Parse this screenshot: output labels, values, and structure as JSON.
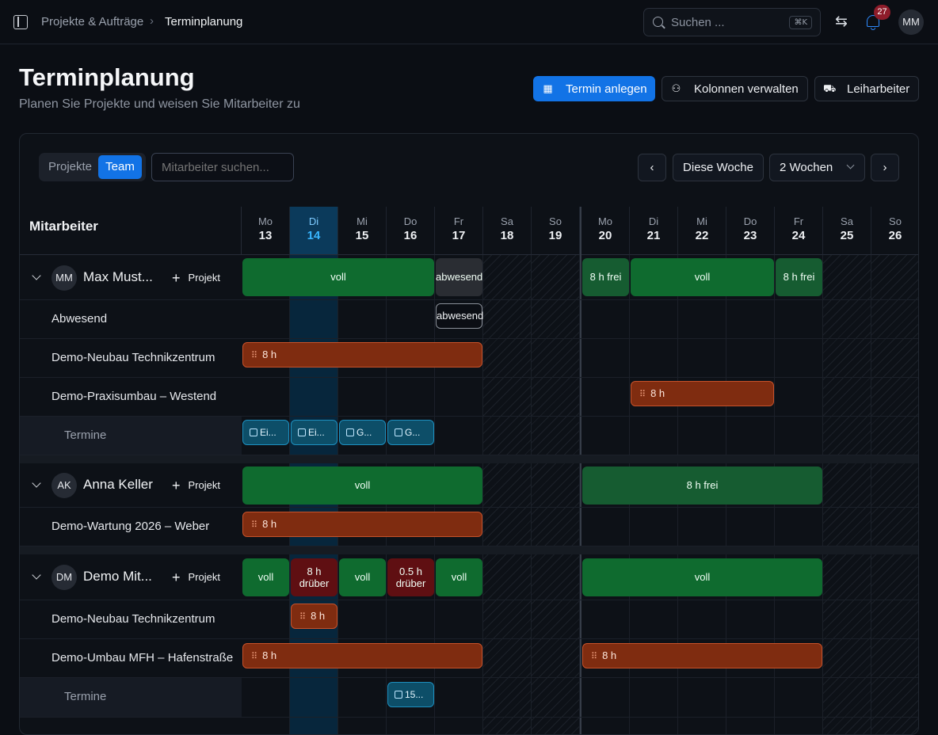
{
  "breadcrumb": {
    "parent": "Projekte & Aufträge",
    "current": "Terminplanung"
  },
  "search": {
    "placeholder": "Suchen ...",
    "shortcut": "⌘K"
  },
  "notifications": {
    "count": "27"
  },
  "user": {
    "initials": "MM"
  },
  "page": {
    "title": "Terminplanung",
    "subtitle": "Planen Sie Projekte und weisen Sie Mitarbeiter zu"
  },
  "actions": {
    "create": "Termin anlegen",
    "columns": "Kolonnen verwalten",
    "temp": "Leiharbeiter"
  },
  "toolbar": {
    "view_projects": "Projekte",
    "view_team": "Team",
    "member_search_placeholder": "Mitarbeiter suchen...",
    "this_week": "Diese Woche",
    "range": "2 Wochen",
    "prev": "‹",
    "next": "›"
  },
  "grid": {
    "member_header": "Mitarbeiter",
    "days": [
      {
        "name": "Mo",
        "date": "13"
      },
      {
        "name": "Di",
        "date": "14"
      },
      {
        "name": "Mi",
        "date": "15"
      },
      {
        "name": "Do",
        "date": "16"
      },
      {
        "name": "Fr",
        "date": "17"
      },
      {
        "name": "Sa",
        "date": "18"
      },
      {
        "name": "So",
        "date": "19"
      },
      {
        "name": "Mo",
        "date": "20"
      },
      {
        "name": "Di",
        "date": "21"
      },
      {
        "name": "Mi",
        "date": "22"
      },
      {
        "name": "Do",
        "date": "23"
      },
      {
        "name": "Fr",
        "date": "24"
      },
      {
        "name": "Sa",
        "date": "25"
      },
      {
        "name": "So",
        "date": "26"
      }
    ],
    "today_index": 1,
    "add_project": "Projekt",
    "appointments_label": "Termine"
  },
  "members": [
    {
      "initials": "MM",
      "name": "Max Must...",
      "capacity": [
        "voll",
        "abwesend",
        "8 h frei",
        "voll",
        "8 h frei"
      ],
      "rows": [
        {
          "label": "Abwesend",
          "blocks": [
            "abwesend"
          ]
        },
        {
          "label": "Demo-Neubau Technikzentrum",
          "blocks": [
            "8 h"
          ]
        },
        {
          "label": "Demo-Praxisumbau – Westend",
          "blocks": [
            "8 h"
          ]
        }
      ],
      "appointments": [
        "Ei...",
        "Ei...",
        "G...",
        "G..."
      ]
    },
    {
      "initials": "AK",
      "name": "Anna Keller",
      "capacity": [
        "voll",
        "8 h frei"
      ],
      "rows": [
        {
          "label": "Demo-Wartung 2026 – Weber",
          "blocks": [
            "8 h"
          ]
        }
      ]
    },
    {
      "initials": "DM",
      "name": "Demo Mit...",
      "capacity": [
        "voll",
        "8 h drüber",
        "voll",
        "0.5 h drüber",
        "voll",
        "voll"
      ],
      "rows": [
        {
          "label": "Demo-Neubau Technikzentrum",
          "blocks": [
            "8 h"
          ]
        },
        {
          "label": "Demo-Umbau MFH – Hafenstraße",
          "blocks": [
            "8 h",
            "8 h"
          ]
        }
      ],
      "appointments": [
        "15..."
      ]
    }
  ]
}
